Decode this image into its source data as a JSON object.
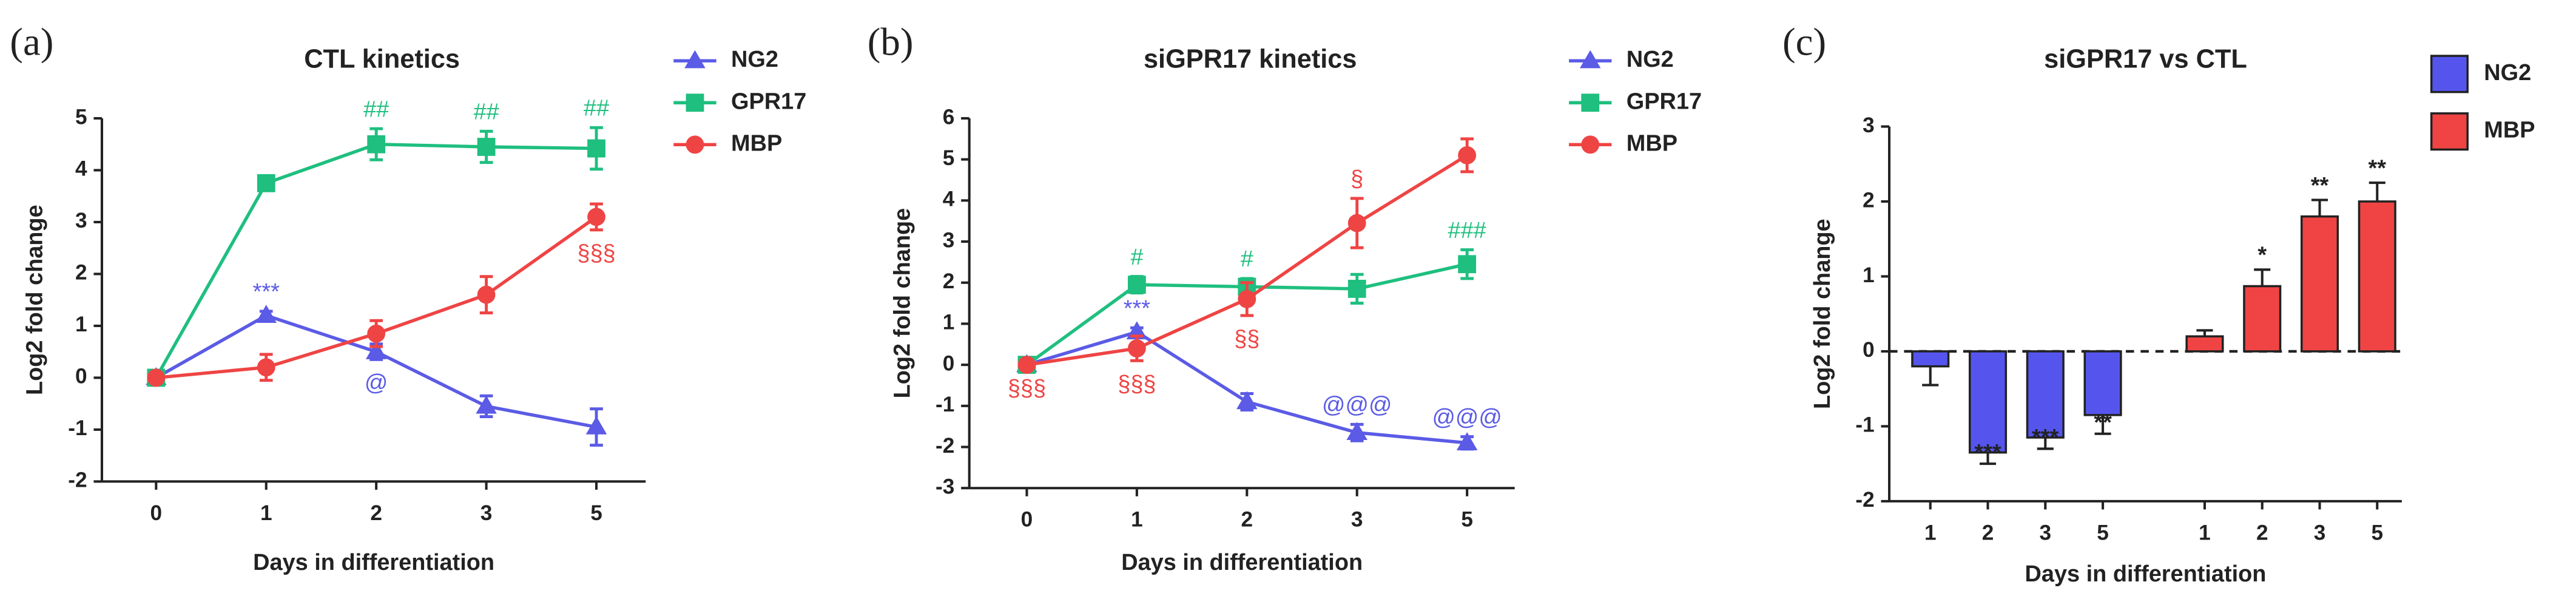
{
  "chart_data": [
    {
      "type": "line",
      "panel_label": "(a)",
      "title": "CTL kinetics",
      "x_label": "Days in differentiation",
      "y_label": "Log2 fold change",
      "categories": [
        "0",
        "1",
        "2",
        "3",
        "5"
      ],
      "ylim": [
        -2,
        5
      ],
      "yticks": [
        -2,
        -1,
        0,
        1,
        2,
        3,
        4,
        5
      ],
      "series": [
        {
          "name": "NG2",
          "color": "#5b5be6",
          "marker": "triangle",
          "values": [
            0,
            1.2,
            0.5,
            -0.55,
            -0.95
          ],
          "errors": [
            0,
            0.08,
            0.15,
            0.2,
            0.35
          ],
          "annotations": [
            {
              "index": 1,
              "text": "***",
              "position": "above"
            },
            {
              "index": 2,
              "text": "@",
              "position": "below"
            }
          ]
        },
        {
          "name": "GPR17",
          "color": "#1fbf7f",
          "marker": "square",
          "values": [
            0,
            3.75,
            4.5,
            4.45,
            4.42
          ],
          "errors": [
            0,
            0.08,
            0.3,
            0.3,
            0.4
          ],
          "annotations": [
            {
              "index": 2,
              "text": "##",
              "position": "above"
            },
            {
              "index": 3,
              "text": "##",
              "position": "above"
            },
            {
              "index": 4,
              "text": "##",
              "position": "above"
            }
          ]
        },
        {
          "name": "MBP",
          "color": "#ef4444",
          "marker": "circle",
          "values": [
            0,
            0.2,
            0.85,
            1.6,
            3.1
          ],
          "errors": [
            0,
            0.25,
            0.25,
            0.35,
            0.25
          ],
          "annotations": [
            {
              "index": 4,
              "text": "§§§",
              "position": "below"
            }
          ]
        }
      ]
    },
    {
      "type": "line",
      "panel_label": "(b)",
      "title": "siGPR17 kinetics",
      "x_label": "Days in differentiation",
      "y_label": "Log2 fold change",
      "categories": [
        "0",
        "1",
        "2",
        "3",
        "5"
      ],
      "ylim": [
        -3,
        6
      ],
      "yticks": [
        -3,
        -2,
        -1,
        0,
        1,
        2,
        3,
        4,
        5,
        6
      ],
      "series": [
        {
          "name": "NG2",
          "color": "#5b5be6",
          "marker": "triangle",
          "values": [
            0,
            0.8,
            -0.9,
            -1.65,
            -1.9
          ],
          "errors": [
            0,
            0.1,
            0.2,
            0.2,
            0.15
          ],
          "annotations": [
            {
              "index": 1,
              "text": "***",
              "position": "above"
            },
            {
              "index": 3,
              "text": "@@@",
              "position": "above"
            },
            {
              "index": 4,
              "text": "@@@",
              "position": "above"
            }
          ]
        },
        {
          "name": "GPR17",
          "color": "#1fbf7f",
          "marker": "square",
          "values": [
            0,
            1.95,
            1.9,
            1.85,
            2.45
          ],
          "errors": [
            0,
            0.2,
            0.2,
            0.35,
            0.35
          ],
          "annotations": [
            {
              "index": 1,
              "text": "#",
              "position": "above"
            },
            {
              "index": 2,
              "text": "#",
              "position": "above"
            },
            {
              "index": 4,
              "text": "###",
              "position": "above"
            }
          ]
        },
        {
          "name": "MBP",
          "color": "#ef4444",
          "marker": "circle",
          "values": [
            0,
            0.4,
            1.6,
            3.45,
            5.1
          ],
          "errors": [
            0,
            0.3,
            0.4,
            0.6,
            0.4
          ],
          "annotations": [
            {
              "index": 0,
              "text": "§§§",
              "position": "below"
            },
            {
              "index": 1,
              "text": "§§§",
              "position": "below"
            },
            {
              "index": 2,
              "text": "§§",
              "position": "below"
            },
            {
              "index": 3,
              "text": "§",
              "position": "above"
            }
          ]
        }
      ]
    },
    {
      "type": "bar",
      "panel_label": "(c)",
      "title": "siGPR17 vs CTL",
      "x_label": "Days in differentiation",
      "y_label": "Log2 fold change",
      "ylim": [
        -2,
        3
      ],
      "yticks": [
        -2,
        -1,
        0,
        1,
        2,
        3
      ],
      "reference_line": 0,
      "series": [
        {
          "name": "NG2",
          "color": "#5555ee",
          "categories": [
            "1",
            "2",
            "3",
            "5"
          ],
          "values": [
            -0.2,
            -1.35,
            -1.15,
            -0.85
          ],
          "errors": [
            0.25,
            0.15,
            0.15,
            0.25
          ],
          "annotations": [
            {
              "index": 1,
              "text": "***"
            },
            {
              "index": 2,
              "text": "***"
            },
            {
              "index": 3,
              "text": "**"
            }
          ]
        },
        {
          "name": "MBP",
          "color": "#f04444",
          "categories": [
            "1",
            "2",
            "3",
            "5"
          ],
          "values": [
            0.2,
            0.87,
            1.8,
            2.0
          ],
          "errors": [
            0.08,
            0.22,
            0.22,
            0.25
          ],
          "annotations": [
            {
              "index": 1,
              "text": "*"
            },
            {
              "index": 2,
              "text": "**"
            },
            {
              "index": 3,
              "text": "**"
            }
          ]
        }
      ]
    }
  ]
}
